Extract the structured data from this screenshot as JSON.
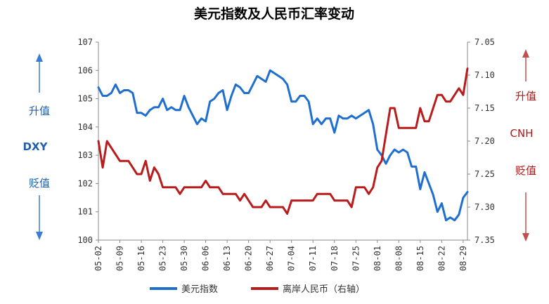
{
  "chart_data": {
    "type": "line",
    "title": "美元指数及人民币汇率变动",
    "x": [
      "05-02",
      "05-03",
      "05-04",
      "05-05",
      "05-06",
      "05-09",
      "05-10",
      "05-11",
      "05-12",
      "05-13",
      "05-16",
      "05-17",
      "05-18",
      "05-19",
      "05-20",
      "05-23",
      "05-24",
      "05-25",
      "05-26",
      "05-27",
      "05-30",
      "05-31",
      "06-01",
      "06-02",
      "06-03",
      "06-06",
      "06-07",
      "06-08",
      "06-09",
      "06-10",
      "06-13",
      "06-14",
      "06-15",
      "06-16",
      "06-17",
      "06-20",
      "06-21",
      "06-22",
      "06-23",
      "06-24",
      "06-27",
      "06-28",
      "06-29",
      "06-30",
      "07-01",
      "07-04",
      "07-05",
      "07-06",
      "07-07",
      "07-08",
      "07-11",
      "07-12",
      "07-13",
      "07-14",
      "07-15",
      "07-18",
      "07-19",
      "07-20",
      "07-21",
      "07-22",
      "07-25",
      "07-26",
      "07-27",
      "07-28",
      "07-29",
      "08-01",
      "08-02",
      "08-03",
      "08-04",
      "08-05",
      "08-08",
      "08-09",
      "08-10",
      "08-11",
      "08-12",
      "08-15",
      "08-16",
      "08-17",
      "08-18",
      "08-19",
      "08-22",
      "08-23",
      "08-24",
      "08-25",
      "08-26",
      "08-29",
      "08-30"
    ],
    "x_ticks": [
      "05-02",
      "05-09",
      "05-16",
      "05-23",
      "05-30",
      "06-06",
      "06-13",
      "06-20",
      "06-27",
      "07-04",
      "07-11",
      "07-18",
      "07-25",
      "08-01",
      "08-08",
      "08-15",
      "08-22",
      "08-29"
    ],
    "series": [
      {
        "name": "美元指数",
        "axis": "left",
        "color": "#1f6fd1",
        "values": [
          105.4,
          105.1,
          105.1,
          105.2,
          105.5,
          105.2,
          105.3,
          105.3,
          105.2,
          104.5,
          104.5,
          104.4,
          104.6,
          104.7,
          104.7,
          105.0,
          104.6,
          104.7,
          104.6,
          104.6,
          105.1,
          104.7,
          104.4,
          104.1,
          104.3,
          104.2,
          104.9,
          105.0,
          105.2,
          105.3,
          104.6,
          105.1,
          105.5,
          105.4,
          105.2,
          105.2,
          105.5,
          105.8,
          105.7,
          105.6,
          106.0,
          105.9,
          105.8,
          105.7,
          105.5,
          104.9,
          104.9,
          105.1,
          105.1,
          104.9,
          104.1,
          104.3,
          104.1,
          104.3,
          104.3,
          103.8,
          104.4,
          104.3,
          104.3,
          104.4,
          104.3,
          104.4,
          104.5,
          104.6,
          104.1,
          103.2,
          103.0,
          102.7,
          103.0,
          103.2,
          103.1,
          103.2,
          103.1,
          102.6,
          102.6,
          101.8,
          102.4,
          102.0,
          101.6,
          101.0,
          101.3,
          100.7,
          100.8,
          100.7,
          100.9,
          101.5,
          101.7
        ]
      },
      {
        "name": "离岸人民币（右轴）",
        "axis": "right",
        "color": "#b81c1c",
        "values": [
          7.2,
          7.24,
          7.2,
          7.21,
          7.22,
          7.23,
          7.23,
          7.23,
          7.24,
          7.25,
          7.25,
          7.23,
          7.26,
          7.24,
          7.25,
          7.27,
          7.27,
          7.27,
          7.27,
          7.28,
          7.27,
          7.27,
          7.27,
          7.27,
          7.27,
          7.26,
          7.27,
          7.27,
          7.27,
          7.28,
          7.28,
          7.28,
          7.28,
          7.29,
          7.28,
          7.29,
          7.3,
          7.3,
          7.3,
          7.29,
          7.3,
          7.3,
          7.3,
          7.3,
          7.31,
          7.29,
          7.29,
          7.29,
          7.29,
          7.29,
          7.29,
          7.28,
          7.28,
          7.28,
          7.28,
          7.29,
          7.29,
          7.29,
          7.29,
          7.3,
          7.27,
          7.27,
          7.27,
          7.28,
          7.27,
          7.24,
          7.23,
          7.19,
          7.15,
          7.15,
          7.18,
          7.18,
          7.18,
          7.18,
          7.18,
          7.15,
          7.17,
          7.17,
          7.15,
          7.13,
          7.13,
          7.14,
          7.14,
          7.13,
          7.12,
          7.13,
          7.09
        ]
      }
    ],
    "y_left": {
      "label": "DXY",
      "ylim": [
        100,
        107
      ],
      "ticks": [
        "100",
        "101",
        "102",
        "103",
        "104",
        "105",
        "106",
        "107"
      ]
    },
    "y_right": {
      "label": "CNH",
      "ylim": [
        7.35,
        7.05
      ],
      "inverted": true,
      "ticks": [
        "7.05",
        "7.10",
        "7.15",
        "7.20",
        "7.25",
        "7.30",
        "7.35"
      ]
    },
    "left_annotations": {
      "up": "升值",
      "mid": "DXY",
      "down": "贬值"
    },
    "right_annotations": {
      "up": "升值",
      "mid": "CNH",
      "down": "贬值"
    },
    "legend": {
      "placement": "bottom",
      "entries": [
        "美元指数",
        "离岸人民币（右轴）"
      ]
    },
    "grid": false
  }
}
